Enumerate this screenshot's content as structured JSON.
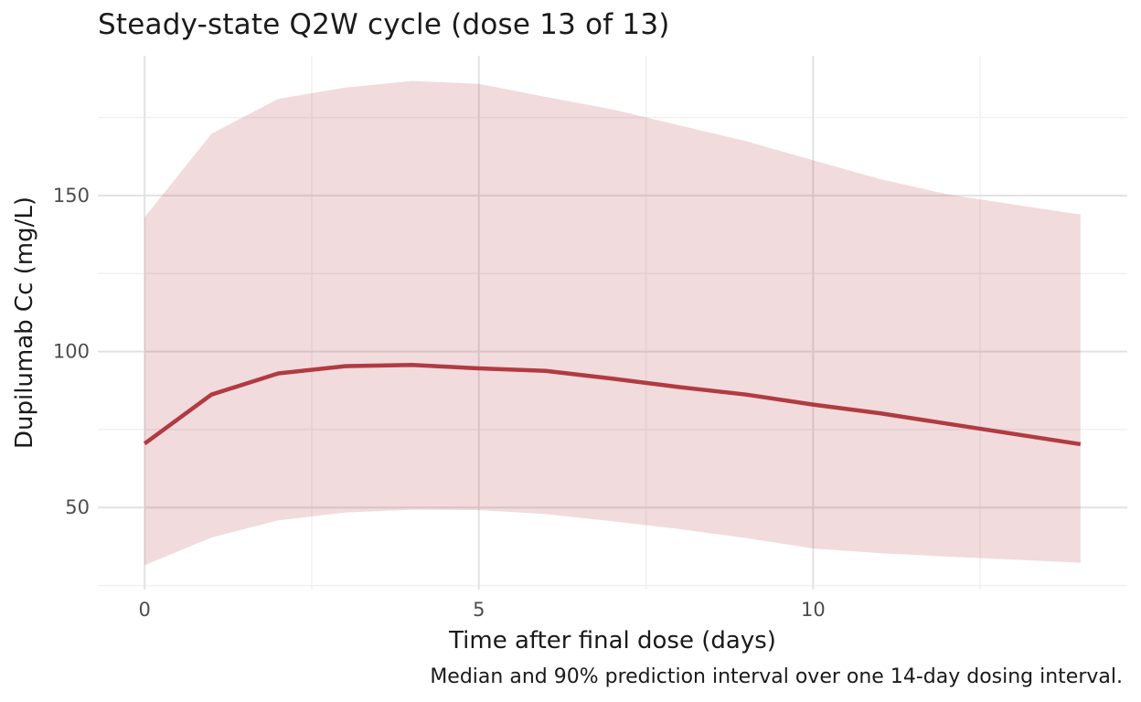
{
  "figure": {
    "title": "Steady-state Q2W cycle (dose 13 of 13)",
    "caption": "Median and 90% prediction interval over one 14-day dosing interval.",
    "x_axis": {
      "label": "Time after final dose (days)",
      "tick_labels": [
        "0",
        "5",
        "10"
      ]
    },
    "y_axis": {
      "label": "Dupilumab Cc (mg/L)",
      "tick_labels": [
        "50",
        "100",
        "150"
      ]
    }
  },
  "chart_data": {
    "type": "area",
    "title": "Steady-state Q2W cycle (dose 13 of 13)",
    "xlabel": "Time after final dose (days)",
    "ylabel": "Dupilumab Cc (mg/L)",
    "caption": "Median and 90% prediction interval over one 14-day dosing interval.",
    "x": [
      0,
      1,
      2,
      3,
      4,
      5,
      6,
      7,
      8,
      9,
      10,
      11,
      12,
      13,
      14
    ],
    "series": [
      {
        "name": "Median",
        "role": "median-line",
        "values": [
          70.5,
          86.2,
          93.0,
          95.3,
          95.7,
          94.6,
          93.8,
          91.3,
          88.6,
          86.2,
          83.0,
          80.2,
          76.9,
          73.6,
          70.3
        ]
      },
      {
        "name": "90% PI upper",
        "role": "ribbon-upper",
        "values": [
          143.0,
          169.8,
          181.0,
          184.6,
          186.7,
          185.8,
          181.6,
          177.6,
          172.5,
          167.4,
          161.3,
          155.3,
          150.4,
          147.1,
          143.9
        ]
      },
      {
        "name": "90% PI lower",
        "role": "ribbon-lower",
        "values": [
          31.5,
          40.4,
          45.9,
          48.4,
          49.3,
          49.2,
          47.9,
          45.6,
          43.1,
          40.2,
          36.9,
          35.4,
          34.3,
          33.3,
          32.3
        ]
      }
    ],
    "xlim": [
      -0.7,
      14.7
    ],
    "ylim": [
      23.7,
      194.8
    ],
    "x_major_ticks": [
      0,
      5,
      10
    ],
    "x_minor_ticks": [
      2.5,
      7.5,
      12.5
    ],
    "y_major_ticks": [
      50,
      100,
      150
    ],
    "y_minor_ticks": [
      25,
      75,
      125,
      175
    ],
    "grid": {
      "show": true,
      "major_color": "#e2e2e2",
      "minor_color": "#f0f0f0",
      "legend_position": "none"
    },
    "colors": {
      "median_line": "#b13b42",
      "ribbon_fill": "#b23a42",
      "ribbon_opacity": 0.18,
      "tick_label": "#4d4d4d",
      "text": "#1a1a1a",
      "background": "#ffffff"
    }
  }
}
